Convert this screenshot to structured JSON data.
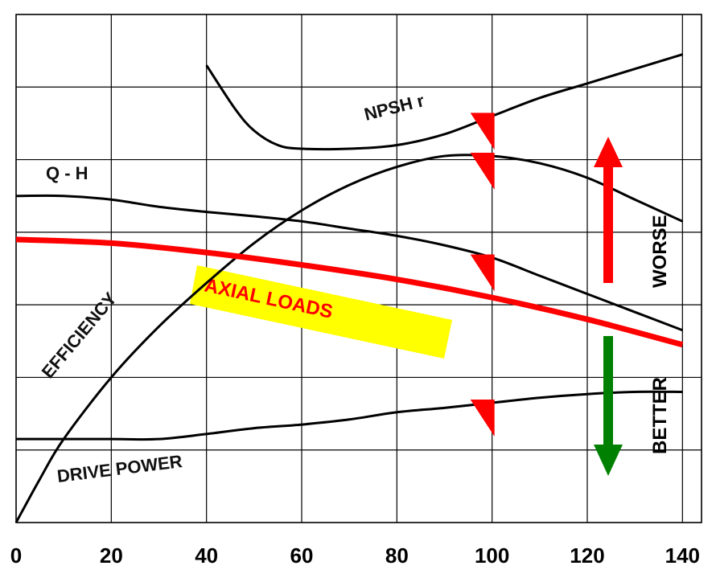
{
  "chart_data": {
    "type": "line",
    "title": "",
    "xlabel": "",
    "ylabel": "",
    "xlim": [
      0,
      144
    ],
    "x_ticks": [
      "0",
      "20",
      "40",
      "60",
      "80",
      "100",
      "120",
      "140"
    ],
    "x_tick_values": [
      0,
      20,
      40,
      60,
      80,
      100,
      120,
      140
    ],
    "ylim": [
      0,
      7
    ],
    "grid": true,
    "series": [
      {
        "name": "NPSH r",
        "color": "#000000",
        "points": [
          [
            40,
            6.3
          ],
          [
            46,
            5.7
          ],
          [
            50,
            5.4
          ],
          [
            55,
            5.2
          ],
          [
            60,
            5.15
          ],
          [
            70,
            5.15
          ],
          [
            80,
            5.2
          ],
          [
            90,
            5.35
          ],
          [
            100,
            5.6
          ],
          [
            110,
            5.85
          ],
          [
            120,
            6.05
          ],
          [
            130,
            6.25
          ],
          [
            140,
            6.45
          ]
        ]
      },
      {
        "name": "Q - H",
        "color": "#000000",
        "points": [
          [
            0,
            4.5
          ],
          [
            10,
            4.5
          ],
          [
            20,
            4.45
          ],
          [
            30,
            4.35
          ],
          [
            40,
            4.28
          ],
          [
            50,
            4.22
          ],
          [
            60,
            4.15
          ],
          [
            70,
            4.05
          ],
          [
            80,
            3.95
          ],
          [
            90,
            3.82
          ],
          [
            100,
            3.65
          ],
          [
            110,
            3.4
          ],
          [
            120,
            3.15
          ],
          [
            130,
            2.9
          ],
          [
            140,
            2.65
          ]
        ]
      },
      {
        "name": "EFFICIENCY",
        "color": "#000000",
        "points": [
          [
            0,
            0
          ],
          [
            5,
            0.6
          ],
          [
            10,
            1.15
          ],
          [
            20,
            2.0
          ],
          [
            30,
            2.7
          ],
          [
            40,
            3.3
          ],
          [
            50,
            3.85
          ],
          [
            60,
            4.3
          ],
          [
            70,
            4.65
          ],
          [
            80,
            4.9
          ],
          [
            90,
            5.05
          ],
          [
            100,
            5.05
          ],
          [
            110,
            4.95
          ],
          [
            120,
            4.75
          ],
          [
            130,
            4.45
          ],
          [
            140,
            4.15
          ]
        ]
      },
      {
        "name": "AXIAL LOADS",
        "color": "#ff0000",
        "points": [
          [
            0,
            3.9
          ],
          [
            20,
            3.85
          ],
          [
            40,
            3.72
          ],
          [
            60,
            3.55
          ],
          [
            80,
            3.35
          ],
          [
            100,
            3.1
          ],
          [
            120,
            2.8
          ],
          [
            140,
            2.45
          ]
        ]
      },
      {
        "name": "DRIVE POWER",
        "color": "#000000",
        "points": [
          [
            0,
            1.15
          ],
          [
            20,
            1.15
          ],
          [
            30,
            1.15
          ],
          [
            40,
            1.22
          ],
          [
            50,
            1.3
          ],
          [
            60,
            1.35
          ],
          [
            70,
            1.42
          ],
          [
            80,
            1.52
          ],
          [
            90,
            1.58
          ],
          [
            100,
            1.65
          ],
          [
            110,
            1.72
          ],
          [
            120,
            1.77
          ],
          [
            130,
            1.8
          ],
          [
            140,
            1.8
          ]
        ]
      }
    ],
    "markers": [
      {
        "series": "NPSH r",
        "x": 100
      },
      {
        "series": "Q - H",
        "x": 100
      },
      {
        "series": "EFFICIENCY",
        "x": 100
      },
      {
        "series": "DRIVE POWER",
        "x": 100
      }
    ],
    "annotations": {
      "npsh": "NPSH r",
      "qh": "Q - H",
      "efficiency": "EFFICIENCY",
      "axial": "AXIAL LOADS",
      "drive": "DRIVE POWER",
      "worse": "WORSE",
      "better": "BETTER"
    },
    "colors": {
      "axial_band": "#ffff00",
      "axial_text": "#ff0000",
      "worse_arrow": "#ff0000",
      "better_arrow": "#008000",
      "marker": "#ff0000",
      "grid": "#000000"
    }
  }
}
